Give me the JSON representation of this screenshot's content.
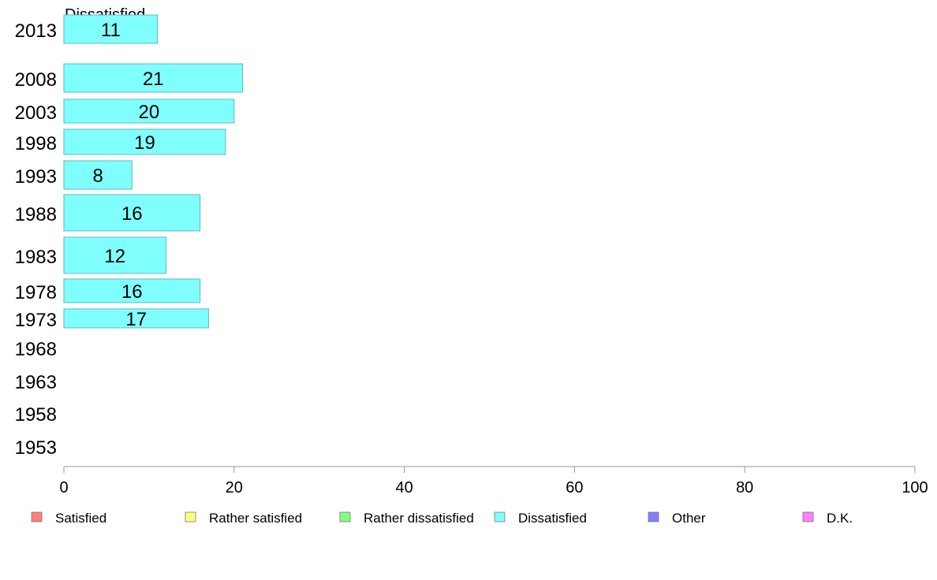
{
  "chart_data": {
    "type": "bar",
    "orientation": "horizontal",
    "title": "Dissatisfied",
    "categories": [
      "2013",
      "2008",
      "2003",
      "1998",
      "1993",
      "1988",
      "1983",
      "1978",
      "1973",
      "1968",
      "1963",
      "1958",
      "1953"
    ],
    "series": [
      {
        "name": "Dissatisfied",
        "color": "#80ffff",
        "values": [
          11,
          21,
          20,
          19,
          8,
          16,
          12,
          16,
          17,
          null,
          null,
          null,
          null
        ]
      }
    ],
    "xlim": [
      0,
      100
    ],
    "xticks": [
      "0",
      "20",
      "40",
      "60",
      "80",
      "100"
    ],
    "grid": false,
    "legend_position": "bottom",
    "legend": [
      {
        "label": "Satisfied",
        "color": "#ff8080"
      },
      {
        "label": "Rather satisfied",
        "color": "#ffff80"
      },
      {
        "label": "Rather dissatisfied",
        "color": "#80ff80"
      },
      {
        "label": "Dissatisfied",
        "color": "#80ffff"
      },
      {
        "label": "Other",
        "color": "#8080ff"
      },
      {
        "label": "D.K.",
        "color": "#ff80ff"
      }
    ]
  }
}
